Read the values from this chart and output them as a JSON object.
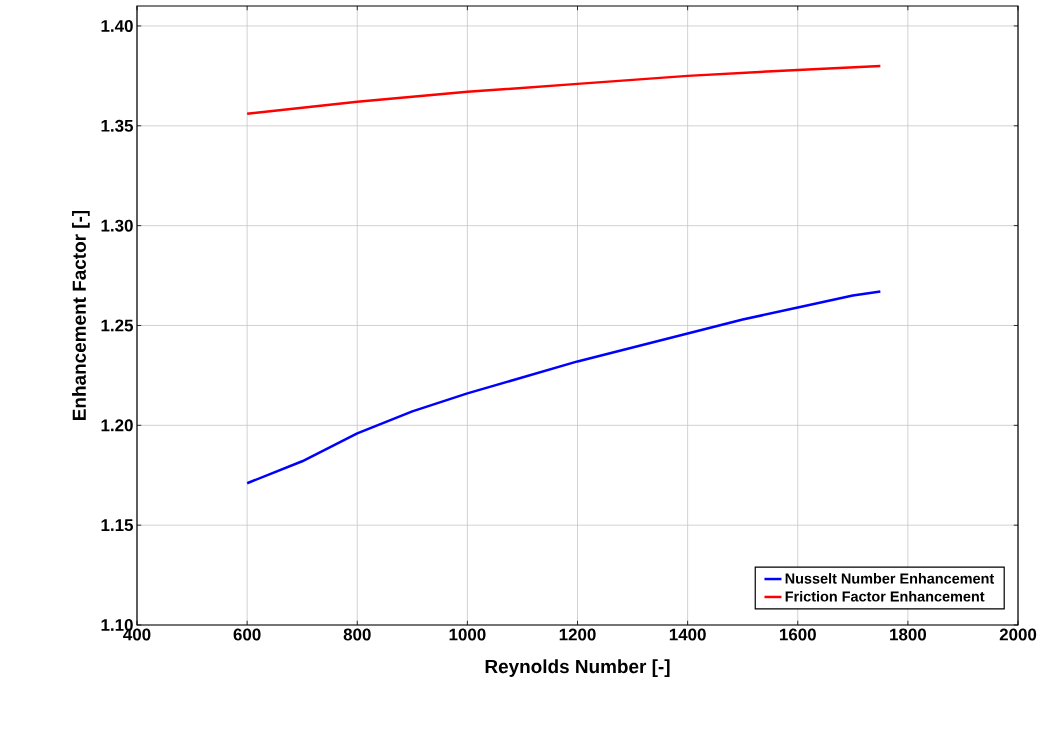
{
  "chart_data": {
    "type": "line",
    "xlabel": "Reynolds Number [-]",
    "ylabel": "Enhancement Factor [-]",
    "xlim": [
      400,
      2000
    ],
    "ylim": [
      1.1,
      1.41
    ],
    "xticks": [
      400,
      600,
      800,
      1000,
      1200,
      1400,
      1600,
      1800,
      2000
    ],
    "yticks": [
      {
        "value": 1.1,
        "label": "1.10"
      },
      {
        "value": 1.15,
        "label": "1.15"
      },
      {
        "value": 1.2,
        "label": "1.20"
      },
      {
        "value": 1.25,
        "label": "1.25"
      },
      {
        "value": 1.3,
        "label": "1.30"
      },
      {
        "value": 1.35,
        "label": "1.35"
      },
      {
        "value": 1.4,
        "label": "1.40"
      }
    ],
    "grid": true,
    "legend": "bottom right",
    "marker": "none",
    "line_style": "solid",
    "series": [
      {
        "name": "Nusselt Number Enhancement",
        "color": "#0000ff",
        "x": [
          600,
          700,
          800,
          900,
          1000,
          1100,
          1200,
          1300,
          1400,
          1500,
          1600,
          1700,
          1750
        ],
        "values": [
          1.171,
          1.182,
          1.196,
          1.207,
          1.216,
          1.224,
          1.232,
          1.239,
          1.246,
          1.253,
          1.259,
          1.265,
          1.267
        ]
      },
      {
        "name": "Friction Factor Enhancement",
        "color": "#ff0000",
        "x": [
          600,
          700,
          800,
          1000,
          1200,
          1400,
          1600,
          1750
        ],
        "values": [
          1.356,
          1.359,
          1.362,
          1.367,
          1.371,
          1.375,
          1.378,
          1.38
        ]
      }
    ]
  }
}
